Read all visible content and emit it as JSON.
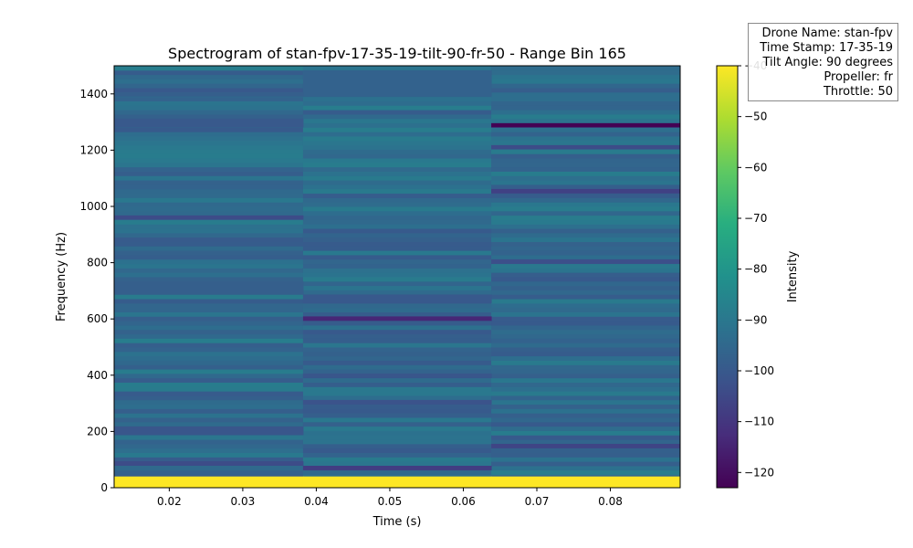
{
  "chart_data": {
    "type": "heatmap",
    "title": "Spectrogram of stan-fpv-17-35-19-tilt-90-fr-50 - Range Bin 165",
    "xlabel": "Time (s)",
    "ylabel": "Frequency (Hz)",
    "xlim": [
      0.0125,
      0.0895
    ],
    "ylim": [
      0,
      1500
    ],
    "x_ticks": [
      0.02,
      0.03,
      0.04,
      0.05,
      0.06,
      0.07,
      0.08
    ],
    "y_ticks": [
      0,
      200,
      400,
      600,
      800,
      1000,
      1200,
      1400
    ],
    "time_bins": [
      0.0125,
      0.0382,
      0.0638,
      0.0895
    ],
    "freq_bin_width": 15.625,
    "colorbar": {
      "label": "Intensity",
      "colormap": "viridis",
      "range": [
        -123,
        -40
      ],
      "ticks": [
        -40,
        -50,
        -60,
        -70,
        -80,
        -90,
        -100,
        -110,
        -120
      ]
    },
    "highlights": [
      {
        "time_bin": 0,
        "freq_range": [
          0,
          40
        ],
        "value": -40
      },
      {
        "time_bin": 1,
        "freq_range": [
          0,
          40
        ],
        "value": -40
      },
      {
        "time_bin": 2,
        "freq_range": [
          0,
          40
        ],
        "value": -40
      },
      {
        "time_bin": 0,
        "freq_range": [
          78,
          94
        ],
        "value": -104
      },
      {
        "time_bin": 1,
        "freq_range": [
          62,
          78
        ],
        "value": -108
      },
      {
        "time_bin": 0,
        "freq_range": [
          187,
          218
        ],
        "value": -101
      },
      {
        "time_bin": 2,
        "freq_range": [
          140,
          156
        ],
        "value": -106
      },
      {
        "time_bin": 1,
        "freq_range": [
          296,
          312
        ],
        "value": -102
      },
      {
        "time_bin": 1,
        "freq_range": [
          390,
          406
        ],
        "value": -101
      },
      {
        "time_bin": 1,
        "freq_range": [
          593,
          609
        ],
        "value": -114
      },
      {
        "time_bin": 1,
        "freq_range": [
          656,
          687
        ],
        "value": -100
      },
      {
        "time_bin": 0,
        "freq_range": [
          687,
          734
        ],
        "value": -98
      },
      {
        "time_bin": 2,
        "freq_range": [
          796,
          812
        ],
        "value": -103
      },
      {
        "time_bin": 0,
        "freq_range": [
          953,
          968
        ],
        "value": -104
      },
      {
        "time_bin": 2,
        "freq_range": [
          1046,
          1062
        ],
        "value": -107
      },
      {
        "time_bin": 2,
        "freq_range": [
          1203,
          1218
        ],
        "value": -104
      },
      {
        "time_bin": 2,
        "freq_range": [
          1281,
          1296
        ],
        "value": -123
      },
      {
        "time_bin": 0,
        "freq_range": [
          1281,
          1312
        ],
        "value": -100
      },
      {
        "time_bin": 1,
        "freq_range": [
          1390,
          1484
        ],
        "value": -97
      },
      {
        "time_bin": 0,
        "freq_range": [
          1390,
          1406
        ],
        "value": -98
      }
    ]
  },
  "info_box": {
    "lines": [
      "Drone Name: stan-fpv",
      "Time Stamp: 17-35-19",
      "Tilt Angle: 90 degrees",
      "Propeller: fr",
      "Throttle: 50"
    ]
  }
}
